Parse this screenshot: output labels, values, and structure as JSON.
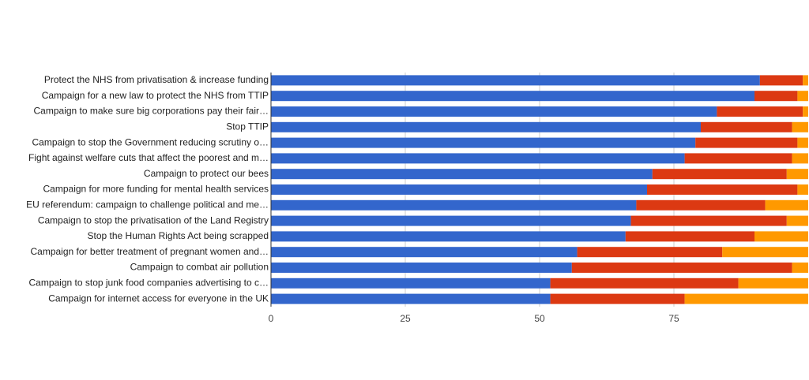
{
  "chart_data": {
    "type": "stacked-barh",
    "categories": [
      "Protect the NHS from privatisation & increase funding",
      "Campaign for a new law to protect the NHS from TTIP",
      "Campaign to make sure big corporations pay their fair…",
      "Stop TTIP",
      "Campaign to stop the Government reducing scrutiny o…",
      "Fight against welfare cuts that affect the poorest and m…",
      "Campaign to protect our bees",
      "Campaign for more funding for mental health services",
      "EU referendum: campaign to challenge political and me…",
      "Campaign to stop the privatisation of the Land Registry",
      "Stop the Human Rights Act being scrapped",
      "Campaign for better treatment of pregnant women and…",
      "Campaign to combat air pollution",
      "Campaign to stop junk food companies advertising to c…",
      "Campaign for internet access for everyone in the UK"
    ],
    "series": [
      {
        "color": "#3366cc",
        "values": [
          91,
          90,
          83,
          80,
          79,
          77,
          71,
          70,
          68,
          67,
          66,
          57,
          56,
          52,
          52
        ]
      },
      {
        "color": "#dc3912",
        "values": [
          8,
          8,
          16,
          17,
          19,
          20,
          25,
          28,
          24,
          29,
          24,
          27,
          41,
          35,
          25
        ]
      },
      {
        "color": "#ff9900",
        "values": [
          1,
          2,
          1,
          3,
          2,
          3,
          4,
          2,
          8,
          4,
          10,
          16,
          3,
          13,
          23
        ]
      }
    ],
    "xlim": [
      0,
      100
    ],
    "xticks": [
      0,
      25,
      50,
      75
    ],
    "grid": true
  }
}
